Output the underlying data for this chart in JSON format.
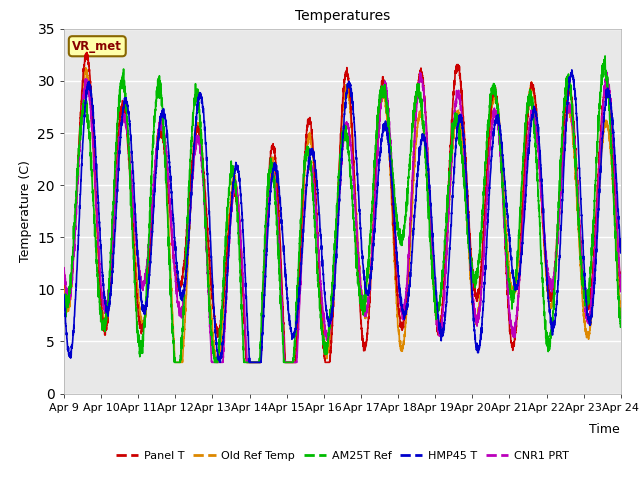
{
  "title": "Temperatures",
  "ylabel": "Temperature (C)",
  "xlabel": "Time",
  "ylim": [
    0,
    35
  ],
  "yticks": [
    0,
    5,
    10,
    15,
    20,
    25,
    30,
    35
  ],
  "n_days": 15,
  "xtick_labels": [
    "Apr 9",
    "Apr 10",
    "Apr 11",
    "Apr 12",
    "Apr 13",
    "Apr 14",
    "Apr 15",
    "Apr 16",
    "Apr 17",
    "Apr 18",
    "Apr 19",
    "Apr 20",
    "Apr 21",
    "Apr 22",
    "Apr 23",
    "Apr 24"
  ],
  "fig_bg_color": "#ffffff",
  "plot_bg_color": "#e8e8e8",
  "grid_color": "#ffffff",
  "legend_labels": [
    "Panel T",
    "Old Ref Temp",
    "AM25T Ref",
    "HMP45 T",
    "CNR1 PRT"
  ],
  "line_colors": [
    "#cc0000",
    "#dd8800",
    "#00bb00",
    "#0000cc",
    "#bb00bb"
  ],
  "line_widths": [
    1.2,
    1.2,
    1.2,
    1.2,
    1.2
  ],
  "station_label": "VR_met",
  "station_label_color": "#880000",
  "station_box_facecolor": "#ffffaa",
  "station_box_edgecolor": "#886600",
  "title_fontsize": 10,
  "axis_label_fontsize": 9,
  "tick_fontsize": 8,
  "legend_fontsize": 8
}
